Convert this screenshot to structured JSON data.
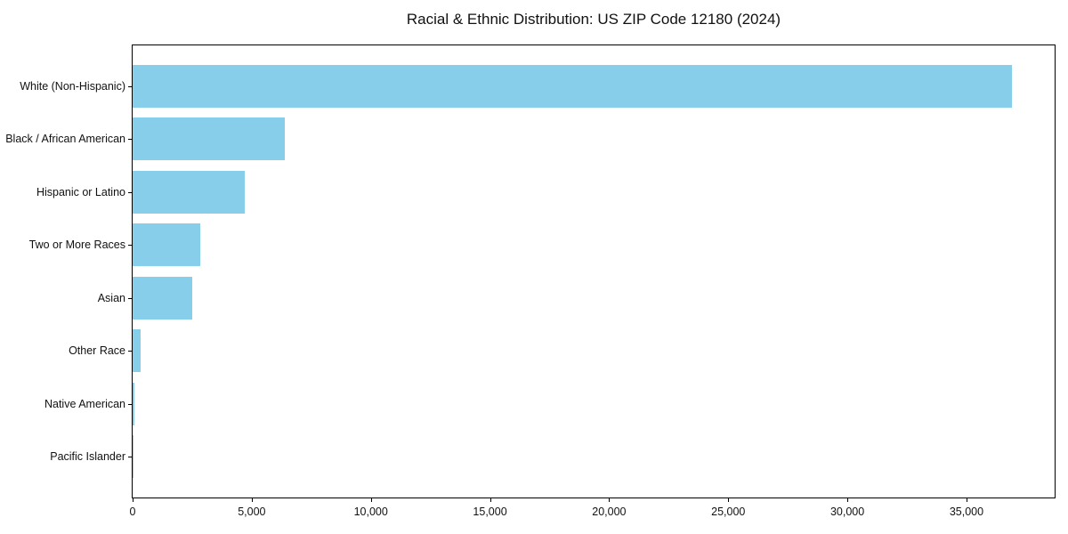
{
  "chart_data": {
    "type": "bar",
    "orientation": "horizontal",
    "title": "Racial & Ethnic Distribution: US ZIP Code 12180 (2024)",
    "categories": [
      "White (Non-Hispanic)",
      "Black / African American",
      "Hispanic or Latino",
      "Two or More Races",
      "Asian",
      "Other Race",
      "Native American",
      "Pacific Islander"
    ],
    "values": [
      36900,
      6400,
      4700,
      2850,
      2500,
      340,
      60,
      20
    ],
    "xlabel": "",
    "ylabel": "",
    "xlim": [
      0,
      38700
    ],
    "xticks": [
      0,
      5000,
      10000,
      15000,
      20000,
      25000,
      30000,
      35000
    ],
    "xtick_labels": [
      "0",
      "5,000",
      "10,000",
      "15,000",
      "20,000",
      "25,000",
      "30,000",
      "35,000"
    ],
    "bar_color": "#87CEEB",
    "background": "#ffffff",
    "axis_color": "#000000",
    "grid": false,
    "legend": null
  }
}
